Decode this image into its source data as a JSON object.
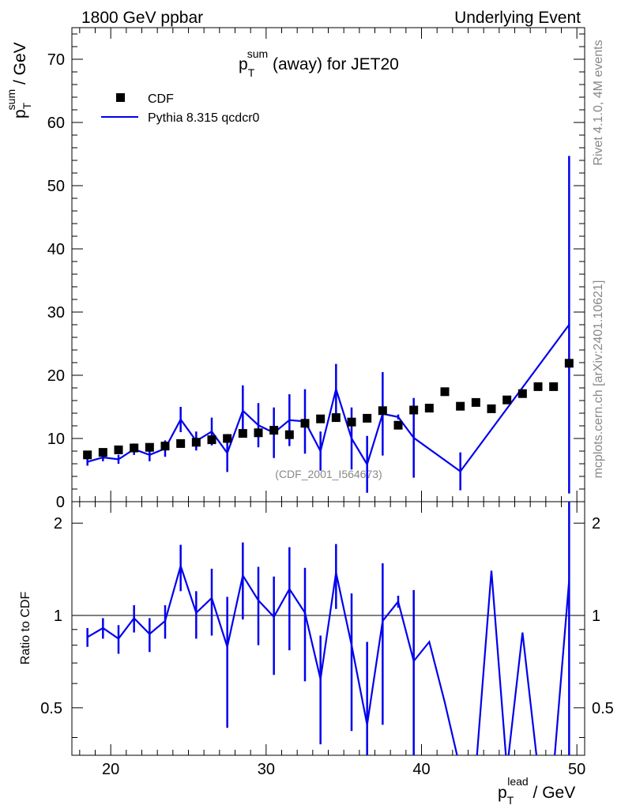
{
  "header": {
    "left": "1800 GeV ppbar",
    "right": "Underlying Event"
  },
  "side_labels": {
    "rivet": "Rivet 4.1.0,  4M events",
    "mcplots": "mcplots.cern.ch [arXiv:2401.10621]"
  },
  "chart_data": [
    {
      "type": "scatter",
      "title": "pT sum (away) for JET20",
      "title_parts": {
        "p": "p",
        "sup": "sum",
        "sub": "T",
        "rest": " (away) for JET20"
      },
      "ylabel_parts": {
        "p": "p",
        "sup": "sum",
        "sub": "T",
        "rest": " / GeV"
      },
      "xlabel_parts": {
        "p": "p",
        "sup": "lead",
        "sub": "T",
        "rest": " / GeV"
      },
      "xlim": [
        17.5,
        50.5
      ],
      "ylim": [
        0,
        75
      ],
      "x_ticks": [
        20,
        30,
        40,
        50
      ],
      "y_ticks": [
        0,
        10,
        20,
        30,
        40,
        50,
        60,
        70
      ],
      "y_tick_labels": [
        "0",
        "10",
        "20",
        "30",
        "40",
        "50",
        "60",
        "70"
      ],
      "watermark": "(CDF_2001_I564673)",
      "legend": [
        {
          "name": "CDF",
          "style": "marker",
          "color": "#000000"
        },
        {
          "name": "Pythia 8.315 qcdcr0",
          "style": "line",
          "color": "#0000ee"
        }
      ],
      "series": [
        {
          "name": "CDF",
          "x": [
            18.5,
            19.5,
            20.5,
            21.5,
            22.5,
            23.5,
            24.5,
            25.5,
            26.5,
            27.5,
            28.5,
            29.5,
            30.5,
            31.5,
            32.5,
            33.5,
            34.5,
            35.5,
            36.5,
            37.5,
            38.5,
            39.5,
            40.5,
            41.5,
            42.5,
            43.5,
            44.5,
            45.5,
            46.5,
            47.5,
            48.5,
            49.5
          ],
          "y": [
            7.4,
            7.8,
            8.2,
            8.5,
            8.6,
            8.8,
            9.2,
            9.4,
            9.8,
            10.0,
            10.8,
            10.9,
            11.3,
            10.6,
            12.4,
            13.1,
            13.3,
            12.6,
            13.2,
            14.4,
            12.1,
            14.5,
            14.8,
            17.4,
            15.1,
            15.7,
            14.7,
            16.1,
            17.1,
            18.2,
            18.2,
            21.9
          ]
        },
        {
          "name": "Pythia 8.315 qcdcr0",
          "x": [
            18.5,
            19.5,
            20.5,
            21.5,
            22.5,
            23.5,
            24.5,
            25.5,
            26.5,
            27.5,
            28.5,
            29.5,
            30.5,
            31.5,
            32.5,
            33.5,
            34.5,
            35.5,
            36.5,
            37.5,
            38.5,
            39.5,
            42.5,
            49.5
          ],
          "y": [
            6.3,
            7.0,
            6.7,
            8.3,
            7.4,
            8.4,
            13.0,
            9.6,
            11.1,
            7.7,
            14.4,
            12.1,
            10.9,
            12.9,
            12.7,
            8.0,
            17.8,
            10.0,
            5.9,
            13.9,
            13.4,
            10.1,
            4.8,
            28.0
          ],
          "yerr": [
            0.6,
            0.6,
            0.7,
            0.9,
            1.0,
            1.3,
            2.0,
            1.5,
            2.2,
            3.0,
            4.0,
            3.5,
            4.0,
            4.1,
            5.1,
            3.1,
            4.0,
            4.9,
            4.5,
            6.6,
            0.4,
            6.3,
            3.0,
            26.7
          ]
        }
      ]
    },
    {
      "type": "line",
      "ylabel": "Ratio to CDF",
      "xlim": [
        17.5,
        50.5
      ],
      "ylim": [
        0.35,
        2.35
      ],
      "ylog": true,
      "reference": 1,
      "y_ticks": [
        0.5,
        1,
        2
      ],
      "y_tick_labels": [
        "0.5",
        "1",
        "2"
      ],
      "series": [
        {
          "name": "Pythia 8.315 qcdcr0 / CDF",
          "x": [
            18.5,
            19.5,
            20.5,
            21.5,
            22.5,
            23.5,
            24.5,
            25.5,
            26.5,
            27.5,
            28.5,
            29.5,
            30.5,
            31.5,
            32.5,
            33.5,
            34.5,
            35.5,
            36.5,
            37.5,
            38.5,
            39.5,
            40.5,
            41.5,
            42.5,
            43.5,
            44.5,
            45.5,
            46.5,
            47.5,
            48.5,
            49.5
          ],
          "y": [
            0.85,
            0.91,
            0.84,
            0.98,
            0.87,
            0.96,
            1.45,
            1.02,
            1.14,
            0.79,
            1.35,
            1.12,
            0.99,
            1.22,
            1.02,
            0.62,
            1.38,
            0.8,
            0.44,
            0.96,
            1.11,
            0.71,
            0.82,
            0.52,
            0.3,
            0.3,
            1.4,
            0.3,
            0.88,
            0.3,
            0.3,
            1.3
          ],
          "yerr": [
            0.06,
            0.07,
            0.09,
            0.1,
            0.11,
            0.12,
            0.25,
            0.18,
            0.28,
            0.36,
            0.38,
            0.32,
            0.35,
            0.45,
            0.41,
            0.24,
            0.33,
            0.38,
            0.38,
            0.52,
            0.05,
            0.5,
            0,
            0,
            0,
            0,
            0,
            0,
            0,
            0,
            0,
            1.2
          ]
        }
      ]
    }
  ]
}
